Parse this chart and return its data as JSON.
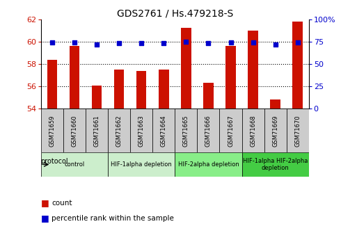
{
  "title": "GDS2761 / Hs.479218-S",
  "samples": [
    "GSM71659",
    "GSM71660",
    "GSM71661",
    "GSM71662",
    "GSM71663",
    "GSM71664",
    "GSM71665",
    "GSM71666",
    "GSM71667",
    "GSM71668",
    "GSM71669",
    "GSM71670"
  ],
  "bar_values": [
    58.4,
    59.6,
    56.1,
    57.5,
    57.4,
    57.5,
    61.2,
    56.3,
    59.6,
    61.0,
    54.8,
    61.8
  ],
  "dot_values": [
    74,
    74,
    72,
    73,
    73,
    73,
    75,
    73,
    74,
    74,
    72,
    74
  ],
  "ylim_left": [
    54,
    62
  ],
  "ylim_right": [
    0,
    100
  ],
  "yticks_left": [
    54,
    56,
    58,
    60,
    62
  ],
  "yticks_right": [
    0,
    25,
    50,
    75,
    100
  ],
  "ytick_right_labels": [
    "0",
    "25",
    "50",
    "75",
    "100%"
  ],
  "bar_color": "#cc1100",
  "dot_color": "#0000cc",
  "proto_groups": [
    {
      "label": "control",
      "start": 0,
      "end": 2,
      "color": "#cceecc"
    },
    {
      "label": "HIF-1alpha depletion",
      "start": 3,
      "end": 5,
      "color": "#cceecc"
    },
    {
      "label": "HIF-2alpha depletion",
      "start": 6,
      "end": 8,
      "color": "#88ee88"
    },
    {
      "label": "HIF-1alpha HIF-2alpha\ndepletion",
      "start": 9,
      "end": 11,
      "color": "#44cc44"
    }
  ],
  "legend_count_label": "count",
  "legend_pct_label": "percentile rank within the sample",
  "protocol_label": "protocol",
  "sample_box_color": "#cccccc",
  "grid_dotted_color": "#000000",
  "grid_ticks": [
    56,
    58,
    60
  ],
  "bar_width": 0.45
}
